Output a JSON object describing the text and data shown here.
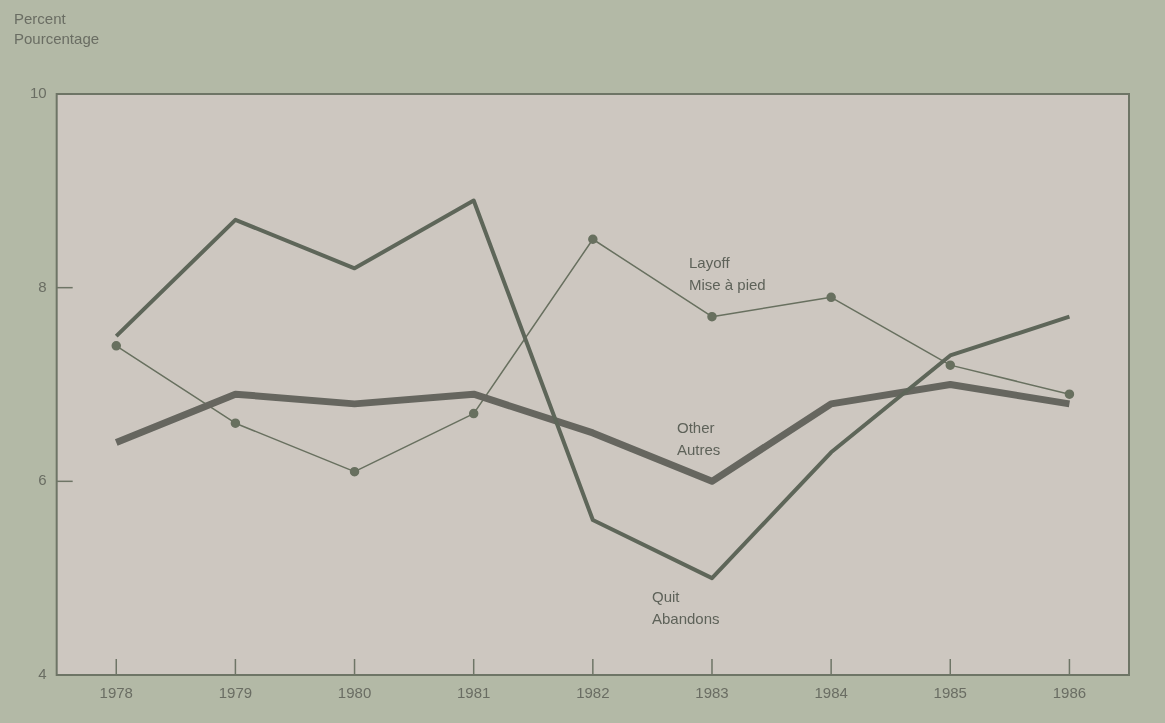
{
  "chart_data": {
    "type": "line",
    "ylabel": "Percent\nPourcentage",
    "categories": [
      "1978",
      "1979",
      "1980",
      "1981",
      "1982",
      "1983",
      "1984",
      "1985",
      "1986"
    ],
    "series": [
      {
        "name": "Quit\nAbandons",
        "color": "#5e6659",
        "marker": "none",
        "values": [
          7.5,
          8.7,
          8.2,
          8.9,
          5.6,
          5.0,
          6.3,
          7.3,
          7.7
        ]
      },
      {
        "name": "Other\nAutres",
        "color": "#66665f",
        "marker": "none",
        "values": [
          6.4,
          6.9,
          6.8,
          6.9,
          6.5,
          6.0,
          6.8,
          7.0,
          6.8
        ]
      },
      {
        "name": "Layoff\nMise à pied",
        "color": "#68705f",
        "marker": "circle",
        "values": [
          7.4,
          6.6,
          6.1,
          6.7,
          8.5,
          7.7,
          7.9,
          7.2,
          6.9
        ]
      }
    ],
    "ylim": [
      4,
      10
    ],
    "yticks": [
      4,
      6,
      8,
      10
    ],
    "grid": false,
    "legend": false
  }
}
